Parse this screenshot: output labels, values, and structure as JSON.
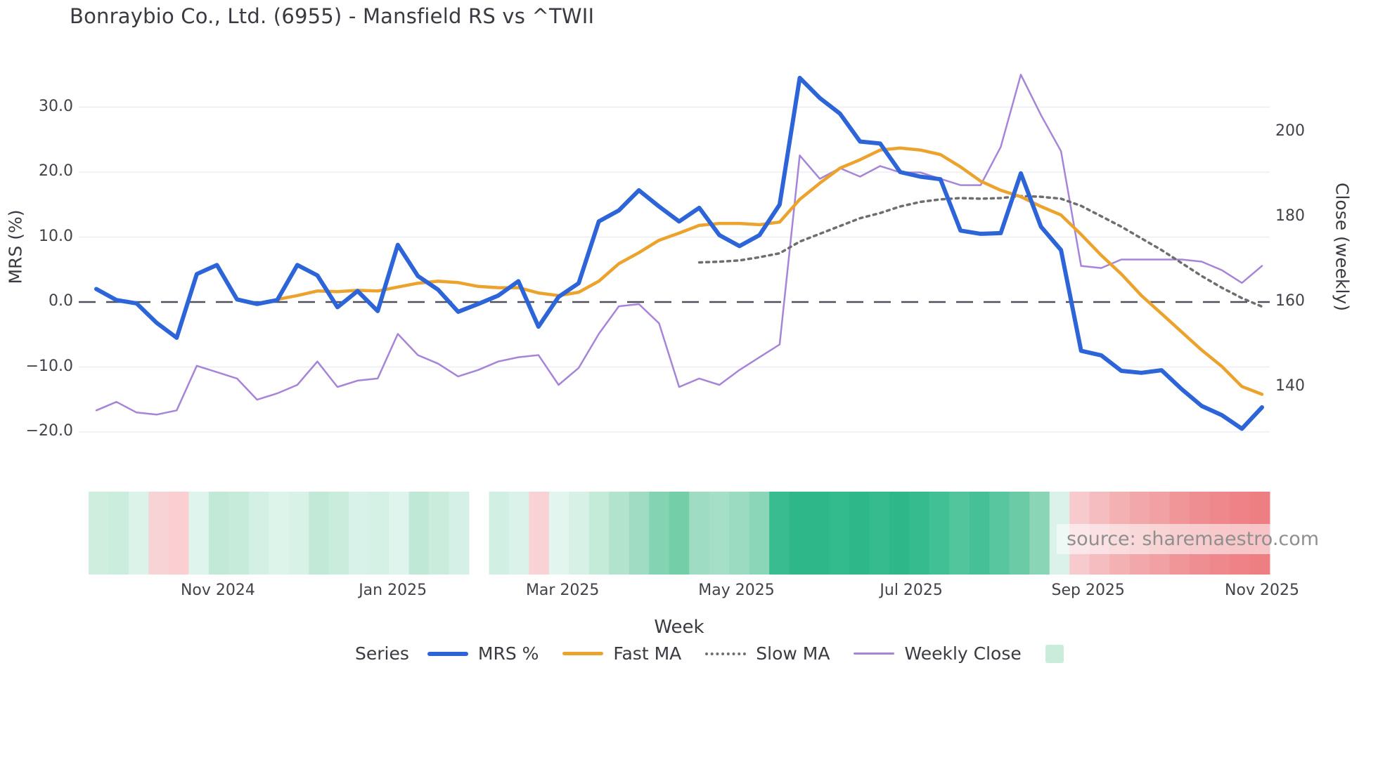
{
  "title": "Bonraybio Co., Ltd. (6955) - Mansfield RS vs ^TWII",
  "source_note": "source: sharemaestro.com",
  "legend": {
    "title": "Series",
    "items": [
      {
        "label": "MRS %"
      },
      {
        "label": "Fast MA"
      },
      {
        "label": "Slow MA"
      },
      {
        "label": "Weekly Close"
      }
    ]
  },
  "axes": {
    "left": {
      "title": "MRS (%)",
      "ticks": [
        {
          "label": "30.0",
          "value": 30
        },
        {
          "label": "20.0",
          "value": 20
        },
        {
          "label": "10.0",
          "value": 10
        },
        {
          "label": "0.0",
          "value": 0
        },
        {
          "label": "−10.0",
          "value": -10
        },
        {
          "label": "−20.0",
          "value": -20
        }
      ]
    },
    "right": {
      "title": "Close (weekly)",
      "ticks": [
        {
          "label": "200",
          "value": 200
        },
        {
          "label": "180",
          "value": 180
        },
        {
          "label": "160",
          "value": 160
        },
        {
          "label": "140",
          "value": 140
        }
      ]
    },
    "x": {
      "title": "Week",
      "ticks": [
        {
          "label": "Nov 2024",
          "week": 6.05
        },
        {
          "label": "Jan 2025",
          "week": 14.75
        },
        {
          "label": "Mar 2025",
          "week": 23.2
        },
        {
          "label": "May 2025",
          "week": 31.85
        },
        {
          "label": "Jul 2025",
          "week": 40.55
        },
        {
          "label": "Sep 2025",
          "week": 49.35
        },
        {
          "label": "Nov 2025",
          "week": 58
        }
      ]
    }
  },
  "chart_data": {
    "type": "line",
    "x_unit": "week",
    "n_points": 59,
    "zero_line": 0,
    "colors": {
      "mrs": "#2d64d8",
      "fast_ma": "#eca32d",
      "slow_ma": "#6e6e6e",
      "weekly_close": "#a685d8",
      "grid": "#ebedf2",
      "zero_dash": "#51515c"
    },
    "series": [
      {
        "name": "MRS %",
        "axis": "left",
        "style": "solid",
        "width": 6,
        "values": [
          2.0,
          0.3,
          -0.2,
          -3.2,
          -5.5,
          4.3,
          5.7,
          0.4,
          -0.3,
          0.3,
          5.7,
          4.1,
          -0.8,
          1.7,
          -1.4,
          8.8,
          4.0,
          1.9,
          -1.5,
          -0.3,
          1.0,
          3.2,
          -3.8,
          0.8,
          2.9,
          12.4,
          14.1,
          17.2,
          14.7,
          12.4,
          14.5,
          10.3,
          8.6,
          10.3,
          15.0,
          34.5,
          31.4,
          29.0,
          24.7,
          24.4,
          20.0,
          19.3,
          18.9,
          11.0,
          10.5,
          10.6,
          19.8,
          11.6,
          8.0,
          -7.5,
          -8.2,
          -10.6,
          -10.9,
          -10.5,
          -13.4,
          -16.0,
          -17.4,
          -19.5,
          -16.2
        ]
      },
      {
        "name": "Fast MA",
        "axis": "left",
        "style": "solid",
        "width": 4.5,
        "values": [
          null,
          null,
          null,
          null,
          null,
          null,
          null,
          null,
          null,
          0.4,
          1.0,
          1.7,
          1.6,
          1.8,
          1.7,
          2.3,
          2.9,
          3.2,
          3.0,
          2.4,
          2.2,
          2.2,
          1.4,
          1.0,
          1.5,
          3.2,
          5.9,
          7.6,
          9.5,
          10.6,
          11.8,
          12.1,
          12.1,
          11.9,
          12.3,
          15.8,
          18.3,
          20.6,
          21.9,
          23.4,
          23.7,
          23.4,
          22.7,
          20.8,
          18.6,
          17.2,
          16.2,
          14.7,
          13.4,
          10.4,
          7.2,
          4.3,
          1.0,
          -1.8,
          -4.6,
          -7.4,
          -9.9,
          -13.0,
          -14.2
        ]
      },
      {
        "name": "Slow MA",
        "axis": "left",
        "style": "dotted",
        "width": 3.5,
        "values": [
          null,
          null,
          null,
          null,
          null,
          null,
          null,
          null,
          null,
          null,
          null,
          null,
          null,
          null,
          null,
          null,
          null,
          null,
          null,
          null,
          null,
          null,
          null,
          null,
          null,
          null,
          null,
          null,
          null,
          null,
          6.1,
          6.2,
          6.4,
          6.9,
          7.5,
          9.3,
          10.5,
          11.7,
          12.9,
          13.7,
          14.7,
          15.4,
          15.8,
          16.0,
          15.9,
          16.0,
          16.3,
          16.2,
          15.9,
          14.8,
          13.2,
          11.6,
          9.8,
          8.0,
          6.0,
          4.0,
          2.2,
          0.6,
          -0.7
        ]
      },
      {
        "name": "Weekly Close",
        "axis": "right",
        "style": "solid",
        "width": 2.5,
        "values": [
          134.5,
          136.5,
          134,
          133.5,
          134.5,
          145,
          143.5,
          142,
          137,
          138.5,
          140.5,
          146,
          140,
          141.5,
          142,
          152.5,
          147.5,
          145.5,
          142.5,
          144,
          146,
          147,
          147.5,
          140.5,
          144.5,
          152.5,
          159,
          159.5,
          155,
          140,
          142,
          140.5,
          144,
          147,
          150,
          194.5,
          189,
          191.5,
          189.5,
          192,
          190.5,
          190.5,
          189,
          187.5,
          187.5,
          196.5,
          213.5,
          204,
          195.5,
          168.5,
          168,
          170,
          170,
          170,
          170,
          169.5,
          167.5,
          164.5,
          168.5
        ]
      }
    ],
    "heatmap_strip": {
      "type": "heatmap",
      "description_colors_per_week": true,
      "cell_colors": [
        "#cfeede",
        "#cbeddd",
        "#dcf3ea",
        "#f8d3d5",
        "#fbced1",
        "#dff4ec",
        "#c2e9d7",
        "#c6ebda",
        "#d4f0e4",
        "#ddf4eb",
        "#d8f2e8",
        "#c2e9d8",
        "#c9ecdc",
        "#d9f2e9",
        "#d5f0e5",
        "#def4ed",
        "#c0e8d6",
        "#c9ecdc",
        "#d5f0e6",
        null,
        "#d2efe4",
        "#daf2e9",
        "#f8d2d4",
        "#e2f5ee",
        "#d7f1e6",
        "#c4ead8",
        "#b2e3cd",
        "#a0dcc3",
        "#84d3b3",
        "#74cfa9",
        "#9edcc4",
        "#a6dfc8",
        "#9bdbc1",
        "#8bd6b8",
        "#39bc90",
        "#2eb88a",
        "#2eb88a",
        "#33ba8d",
        "#2eb88a",
        "#36bb8f",
        "#2eb88a",
        "#35bb8e",
        "#42c095",
        "#52c59c",
        "#46c197",
        "#58c79f",
        "#6acba6",
        "#8ad5b6",
        "#daf2e9",
        "#f7cbce",
        "#f5bdc0",
        "#f3b1b4",
        "#f2a8ab",
        "#f1a0a3",
        "#f09699",
        "#ef8e92",
        "#ee888c",
        "#ee8286",
        "#ed7f83"
      ]
    }
  }
}
